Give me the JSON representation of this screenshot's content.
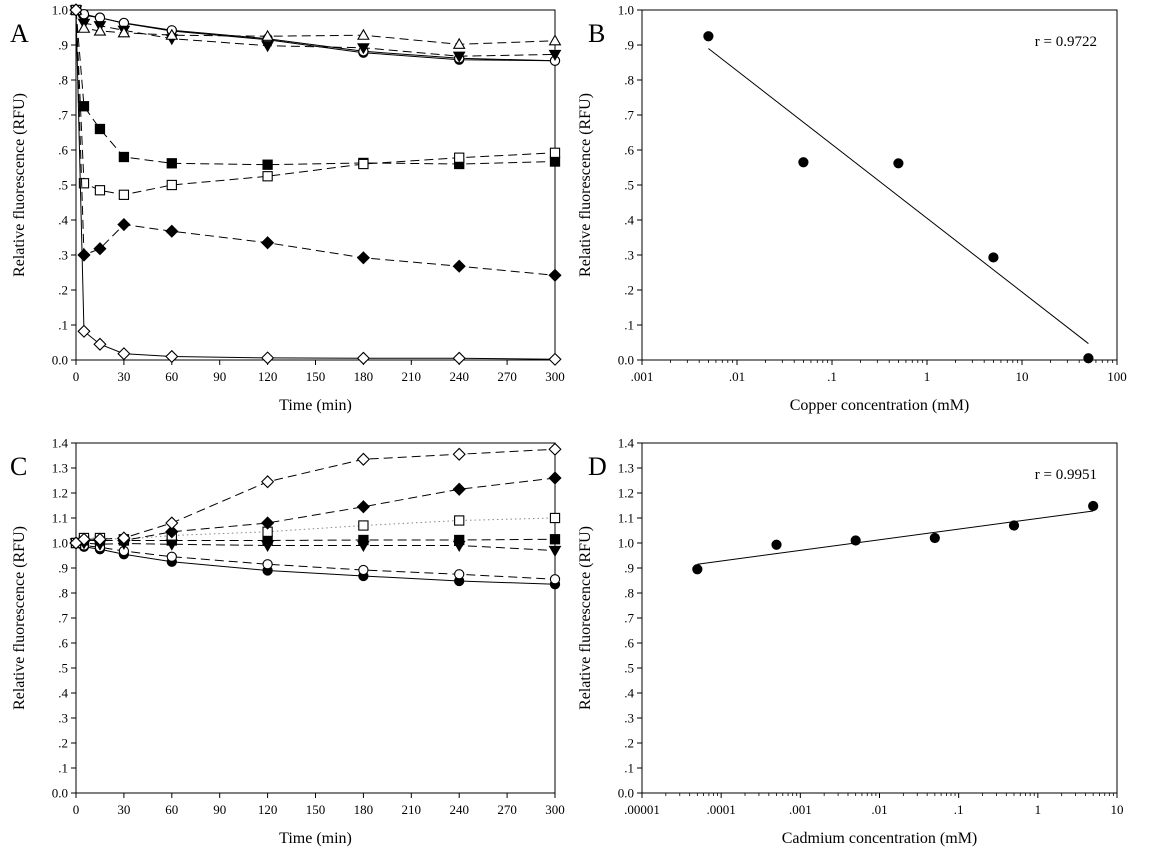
{
  "chart_data": [
    {
      "panel": "A",
      "type": "line",
      "xlabel": "Time (min)",
      "ylabel": "Relative fluorescence (RFU)",
      "xlim": [
        0,
        300
      ],
      "ylim": [
        0,
        1
      ],
      "x_scale": "linear",
      "y_scale": "linear",
      "x_ticks": [
        0,
        30,
        60,
        90,
        120,
        150,
        180,
        210,
        240,
        270,
        300
      ],
      "x_tick_labels": [
        "0",
        "30",
        "60",
        "90",
        "120",
        "150",
        "180",
        "210",
        "240",
        "270",
        "300"
      ],
      "y_ticks": [
        0,
        0.1,
        0.2,
        0.3,
        0.4,
        0.5,
        0.6,
        0.7,
        0.8,
        0.9,
        1.0
      ],
      "y_tick_labels": [
        "0.0",
        ".1",
        ".2",
        ".3",
        ".4",
        ".5",
        ".6",
        ".7",
        ".8",
        ".9",
        "1.0"
      ],
      "grid": false,
      "series": [
        {
          "marker": "circle-filled",
          "line": "solid",
          "x": [
            0,
            5,
            15,
            30,
            60,
            120,
            180,
            240,
            300
          ],
          "y": [
            1.0,
            0.985,
            0.978,
            0.962,
            0.94,
            0.915,
            0.878,
            0.858,
            0.855
          ]
        },
        {
          "marker": "circle-open",
          "line": "solid",
          "x": [
            0,
            5,
            15,
            30,
            60,
            120,
            180,
            240,
            300
          ],
          "y": [
            1.0,
            0.988,
            0.978,
            0.963,
            0.942,
            0.918,
            0.882,
            0.862,
            0.855
          ]
        },
        {
          "marker": "triangle-down-filled",
          "line": "dashed",
          "x": [
            0,
            5,
            15,
            30,
            60,
            120,
            180,
            240,
            300
          ],
          "y": [
            1.0,
            0.962,
            0.955,
            0.942,
            0.918,
            0.898,
            0.892,
            0.868,
            0.873
          ]
        },
        {
          "marker": "triangle-up-open",
          "line": "dashed",
          "x": [
            0,
            5,
            15,
            30,
            60,
            120,
            180,
            240,
            300
          ],
          "y": [
            1.0,
            0.948,
            0.94,
            0.935,
            0.928,
            0.925,
            0.928,
            0.902,
            0.912
          ]
        },
        {
          "marker": "square-filled",
          "line": "dashed",
          "x": [
            0,
            5,
            15,
            30,
            60,
            120,
            180,
            240,
            300
          ],
          "y": [
            1.0,
            0.725,
            0.66,
            0.58,
            0.562,
            0.558,
            0.563,
            0.56,
            0.567
          ]
        },
        {
          "marker": "square-open",
          "line": "dashed",
          "x": [
            0,
            5,
            15,
            30,
            60,
            120,
            180,
            240,
            300
          ],
          "y": [
            1.0,
            0.505,
            0.485,
            0.472,
            0.5,
            0.525,
            0.56,
            0.578,
            0.592
          ]
        },
        {
          "marker": "diamond-filled",
          "line": "dashed",
          "x": [
            0,
            5,
            15,
            30,
            60,
            120,
            180,
            240,
            300
          ],
          "y": [
            1.0,
            0.3,
            0.318,
            0.387,
            0.368,
            0.335,
            0.292,
            0.268,
            0.242
          ]
        },
        {
          "marker": "diamond-open",
          "line": "solid",
          "x": [
            0,
            5,
            15,
            30,
            60,
            120,
            180,
            240,
            300
          ],
          "y": [
            1.0,
            0.082,
            0.045,
            0.018,
            0.01,
            0.006,
            0.005,
            0.005,
            0.002
          ]
        }
      ]
    },
    {
      "panel": "B",
      "type": "scatter",
      "xlabel": "Copper concentration (mM)",
      "ylabel": "Relative fluorescence (RFU)",
      "xlim": [
        0.001,
        100
      ],
      "ylim": [
        0,
        1
      ],
      "x_scale": "log",
      "y_scale": "linear",
      "x_ticks": [
        0.001,
        0.01,
        0.1,
        1,
        10,
        100
      ],
      "x_tick_labels": [
        ".001",
        ".01",
        ".1",
        "1",
        "10",
        "100"
      ],
      "y_ticks": [
        0,
        0.1,
        0.2,
        0.3,
        0.4,
        0.5,
        0.6,
        0.7,
        0.8,
        0.9,
        1.0
      ],
      "y_tick_labels": [
        "0.0",
        ".1",
        ".2",
        ".3",
        ".4",
        ".5",
        ".6",
        ".7",
        ".8",
        ".9",
        "1.0"
      ],
      "grid": false,
      "points": {
        "x": [
          0.005,
          0.05,
          0.5,
          5,
          50
        ],
        "y": [
          0.925,
          0.565,
          0.562,
          0.293,
          0.005
        ]
      },
      "fit_line": {
        "x": [
          0.005,
          50
        ],
        "y": [
          0.89,
          0.047
        ]
      },
      "annotation": "r = 0.9722"
    },
    {
      "panel": "C",
      "type": "line",
      "xlabel": "Time (min)",
      "ylabel": "Relative fluorescence (RFU)",
      "xlim": [
        0,
        300
      ],
      "ylim": [
        0,
        1.4
      ],
      "x_scale": "linear",
      "y_scale": "linear",
      "x_ticks": [
        0,
        30,
        60,
        90,
        120,
        150,
        180,
        210,
        240,
        270,
        300
      ],
      "x_tick_labels": [
        "0",
        "30",
        "60",
        "90",
        "120",
        "150",
        "180",
        "210",
        "240",
        "270",
        "300"
      ],
      "y_ticks": [
        0,
        0.1,
        0.2,
        0.3,
        0.4,
        0.5,
        0.6,
        0.7,
        0.8,
        0.9,
        1.0,
        1.1,
        1.2,
        1.3,
        1.4
      ],
      "y_tick_labels": [
        "0.0",
        ".1",
        ".2",
        ".3",
        ".4",
        ".5",
        ".6",
        ".7",
        ".8",
        ".9",
        "1.0",
        "1.1",
        "1.2",
        "1.3",
        "1.4"
      ],
      "grid": false,
      "series": [
        {
          "marker": "circle-filled",
          "line": "solid",
          "x": [
            0,
            5,
            15,
            30,
            60,
            120,
            180,
            240,
            300
          ],
          "y": [
            1.0,
            0.985,
            0.975,
            0.955,
            0.925,
            0.89,
            0.868,
            0.848,
            0.835
          ]
        },
        {
          "marker": "circle-open",
          "line": "dashed",
          "x": [
            0,
            5,
            15,
            30,
            60,
            120,
            180,
            240,
            300
          ],
          "y": [
            1.0,
            0.99,
            0.983,
            0.968,
            0.945,
            0.915,
            0.892,
            0.875,
            0.855
          ]
        },
        {
          "marker": "triangle-down-filled",
          "line": "dashed",
          "x": [
            0,
            5,
            15,
            30,
            60,
            120,
            180,
            240,
            300
          ],
          "y": [
            1.0,
            1.0,
            0.995,
            0.998,
            0.995,
            0.99,
            0.99,
            0.99,
            0.97
          ]
        },
        {
          "marker": "square-filled",
          "line": "dashed",
          "x": [
            0,
            5,
            15,
            30,
            60,
            120,
            180,
            240,
            300
          ],
          "y": [
            1.0,
            1.01,
            1.01,
            1.01,
            1.01,
            1.01,
            1.012,
            1.012,
            1.015
          ]
        },
        {
          "marker": "square-open",
          "line": "dotted",
          "x": [
            0,
            5,
            15,
            30,
            60,
            120,
            180,
            240,
            300
          ],
          "y": [
            1.0,
            1.02,
            1.02,
            1.015,
            1.03,
            1.045,
            1.07,
            1.09,
            1.1
          ]
        },
        {
          "marker": "diamond-filled",
          "line": "dashed",
          "x": [
            0,
            5,
            15,
            30,
            60,
            120,
            180,
            240,
            300
          ],
          "y": [
            1.0,
            1.01,
            1.01,
            1.01,
            1.045,
            1.08,
            1.145,
            1.215,
            1.26
          ]
        },
        {
          "marker": "diamond-open",
          "line": "dashed",
          "x": [
            0,
            5,
            15,
            30,
            60,
            120,
            180,
            240,
            300
          ],
          "y": [
            1.0,
            1.015,
            1.015,
            1.02,
            1.08,
            1.245,
            1.335,
            1.355,
            1.375
          ]
        }
      ]
    },
    {
      "panel": "D",
      "type": "scatter",
      "xlabel": "Cadmium concentration (mM)",
      "ylabel": "Relative fluorescence (RFU)",
      "xlim": [
        1e-05,
        10
      ],
      "ylim": [
        0,
        1.4
      ],
      "x_scale": "log",
      "y_scale": "linear",
      "x_ticks": [
        1e-05,
        0.0001,
        0.001,
        0.01,
        0.1,
        1,
        10
      ],
      "x_tick_labels": [
        ".00001",
        ".0001",
        ".001",
        ".01",
        ".1",
        "1",
        "10"
      ],
      "y_ticks": [
        0,
        0.1,
        0.2,
        0.3,
        0.4,
        0.5,
        0.6,
        0.7,
        0.8,
        0.9,
        1.0,
        1.1,
        1.2,
        1.3,
        1.4
      ],
      "y_tick_labels": [
        "0.0",
        ".1",
        ".2",
        ".3",
        ".4",
        ".5",
        ".6",
        ".7",
        ".8",
        ".9",
        "1.0",
        "1.1",
        "1.2",
        "1.3",
        "1.4"
      ],
      "grid": false,
      "points": {
        "x": [
          5e-05,
          0.0005,
          0.005,
          0.05,
          0.5,
          5
        ],
        "y": [
          0.895,
          0.993,
          1.01,
          1.02,
          1.07,
          1.148
        ]
      },
      "fit_line": {
        "x": [
          5e-05,
          5
        ],
        "y": [
          0.915,
          1.128
        ]
      },
      "annotation": "r = 0.9951"
    }
  ]
}
